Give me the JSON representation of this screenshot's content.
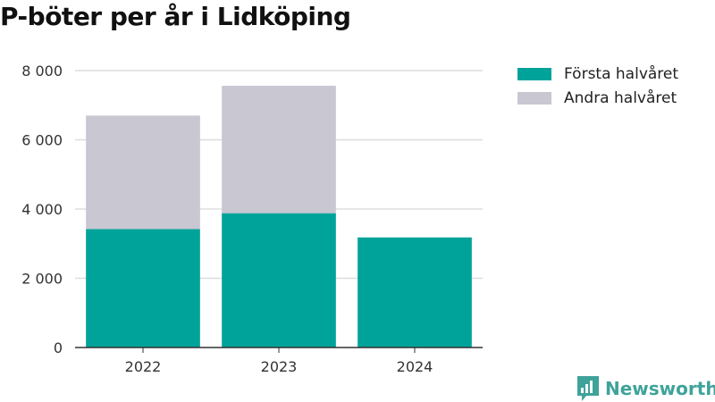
{
  "colors": {
    "first_half": "#00a39a",
    "second_half": "#c8c7d2",
    "brand": "#3fa39a",
    "grid": "#dddddd",
    "axis": "#333333"
  },
  "chart_data": {
    "type": "bar",
    "stacked": true,
    "title": "P-böter per år i Lidköping",
    "categories": [
      "2022",
      "2023",
      "2024"
    ],
    "series": [
      {
        "name": "Första halvåret",
        "values": [
          3420,
          3880,
          3180
        ]
      },
      {
        "name": "Andra halvåret",
        "values": [
          3280,
          3680,
          null
        ]
      }
    ],
    "ylim": [
      0,
      8000
    ],
    "yticks": [
      0,
      2000,
      4000,
      6000,
      8000
    ],
    "ytick_labels": [
      "0",
      "2 000",
      "4 000",
      "6 000",
      "8 000"
    ],
    "grid": true,
    "legend_position": "top-right"
  },
  "brand": {
    "name": "Newsworthy",
    "icon": "bar-chart-icon"
  }
}
